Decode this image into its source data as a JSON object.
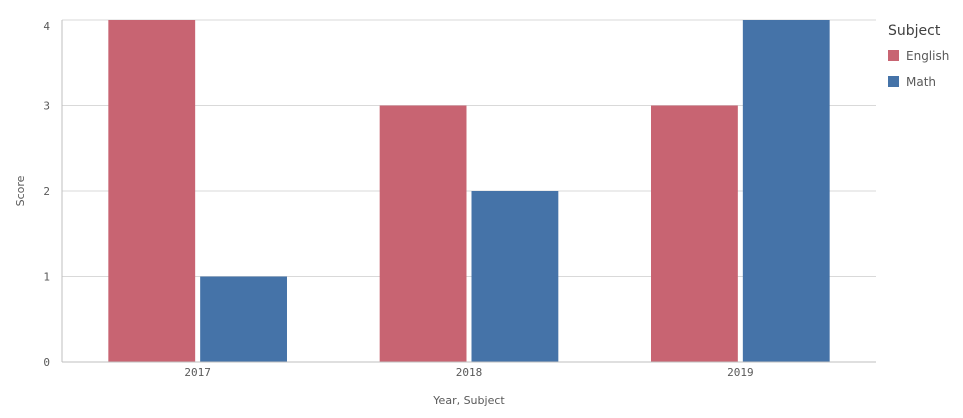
{
  "chart_data": {
    "type": "bar",
    "categories": [
      "2017",
      "2018",
      "2019"
    ],
    "series": [
      {
        "name": "English",
        "values": [
          4,
          3,
          3
        ],
        "color": "#c86472"
      },
      {
        "name": "Math",
        "values": [
          1,
          2,
          4
        ],
        "color": "#4573a8"
      }
    ],
    "xlabel": "Year, Subject",
    "ylabel": "Score",
    "ylim": [
      0,
      4
    ],
    "yticks": [
      "0",
      "1",
      "2",
      "3",
      "4"
    ],
    "grid": true,
    "legend": {
      "title": "Subject",
      "placement": "right"
    }
  }
}
